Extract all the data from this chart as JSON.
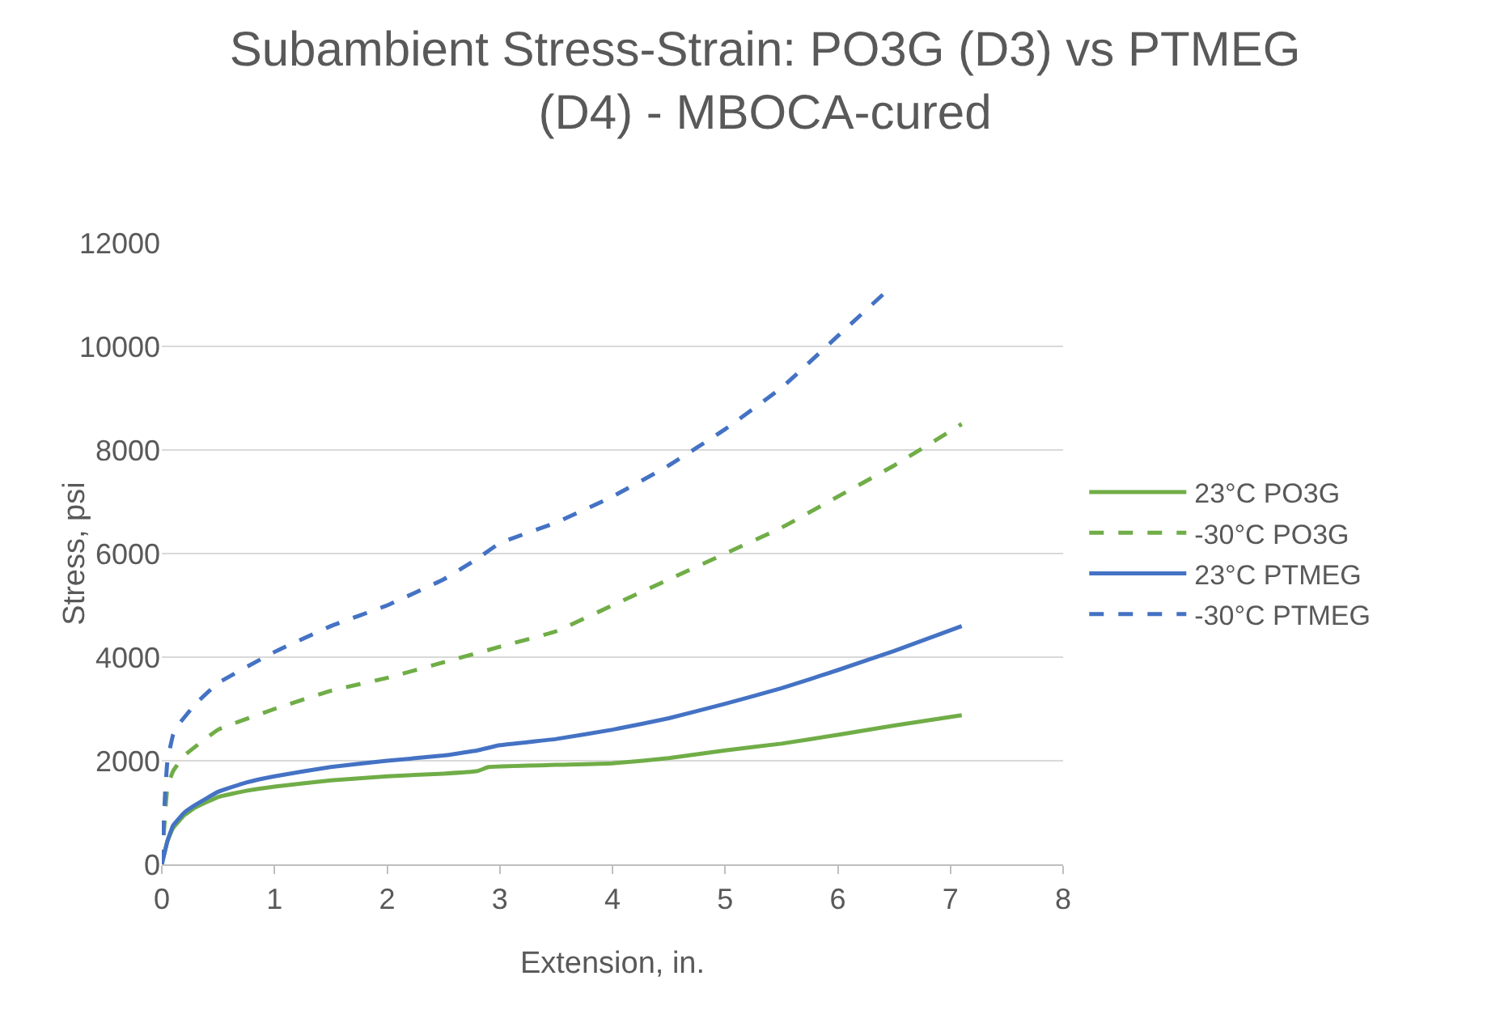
{
  "chart_data": {
    "type": "line",
    "title": "Subambient Stress-Strain: PO3G (D3) vs PTMEG (D4) - MBOCA-cured",
    "xlabel": "Extension, in.",
    "ylabel": "Stress, psi",
    "xlim": [
      0,
      8
    ],
    "xticks": [
      0,
      1,
      2,
      3,
      4,
      5,
      6,
      7,
      8
    ],
    "ylim": [
      0,
      12000
    ],
    "yticks": [
      0,
      2000,
      4000,
      6000,
      8000,
      10000,
      12000
    ],
    "grid": "y",
    "legend": "right",
    "marker": "none",
    "series": [
      {
        "name": "23°C PO3G",
        "color": "#70ad47",
        "line_style": "solid",
        "x": [
          0,
          0.05,
          0.1,
          0.2,
          0.3,
          0.5,
          0.75,
          1,
          1.5,
          2,
          2.5,
          2.8,
          2.9,
          3.5,
          4,
          4.5,
          5,
          5.5,
          6,
          6.5,
          7.1
        ],
        "values": [
          0,
          450,
          700,
          950,
          1100,
          1300,
          1420,
          1500,
          1620,
          1700,
          1750,
          1800,
          1880,
          1920,
          1950,
          2050,
          2200,
          2330,
          2500,
          2680,
          2880
        ]
      },
      {
        "name": "-30°C PO3G",
        "color": "#70ad47",
        "line_style": "dashed",
        "x": [
          0,
          0.03,
          0.05,
          0.1,
          0.2,
          0.5,
          1,
          1.5,
          2,
          2.5,
          3,
          3.5,
          4,
          4.5,
          5,
          5.5,
          6,
          6.5,
          7.1
        ],
        "values": [
          0,
          1000,
          1500,
          1800,
          2100,
          2600,
          3000,
          3350,
          3600,
          3900,
          4200,
          4500,
          5000,
          5500,
          6000,
          6500,
          7100,
          7700,
          8500
        ]
      },
      {
        "name": "23°C PTMEG",
        "color": "#4472c4",
        "line_style": "solid",
        "x": [
          0,
          0.05,
          0.1,
          0.2,
          0.3,
          0.5,
          0.75,
          1,
          1.5,
          2,
          2.5,
          2.8,
          3,
          3.5,
          4,
          4.5,
          5,
          5.5,
          6,
          6.5,
          7.1
        ],
        "values": [
          0,
          450,
          750,
          1000,
          1150,
          1400,
          1580,
          1700,
          1880,
          2000,
          2100,
          2200,
          2300,
          2420,
          2600,
          2820,
          3100,
          3400,
          3750,
          4120,
          4600
        ]
      },
      {
        "name": "-30°C PTMEG",
        "color": "#4472c4",
        "line_style": "dashed",
        "x": [
          0,
          0.03,
          0.05,
          0.1,
          0.15,
          0.3,
          0.5,
          1,
          1.5,
          2,
          2.5,
          2.8,
          3,
          3.5,
          4,
          4.5,
          5,
          5.5,
          6,
          6.4
        ],
        "values": [
          0,
          1400,
          2000,
          2500,
          2700,
          3100,
          3500,
          4100,
          4600,
          5000,
          5500,
          5900,
          6200,
          6600,
          7100,
          7700,
          8400,
          9200,
          10200,
          11000
        ]
      }
    ]
  }
}
